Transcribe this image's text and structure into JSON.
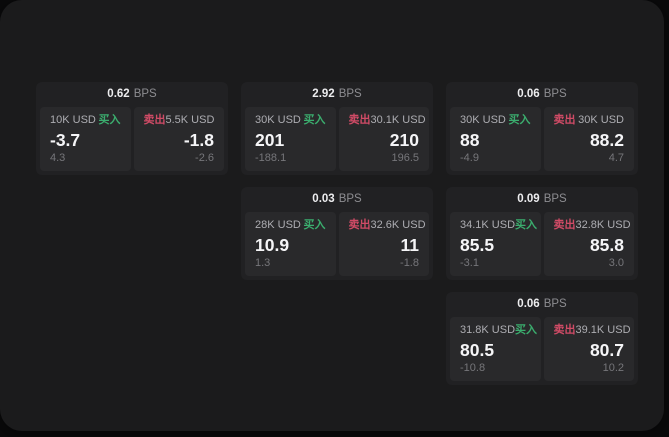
{
  "labels": {
    "bps_suffix": "BPS",
    "buy": "买入",
    "sell": "卖出"
  },
  "colors": {
    "buy_green": "#3bad6e",
    "sell_red": "#d04b66",
    "window_bg": "#1b1b1c",
    "card_bg": "#212123",
    "panel_bg": "#29292b"
  },
  "cards": [
    {
      "bps": "0.62",
      "col": 1,
      "row": 1,
      "buy": {
        "amount": "10K USD",
        "price": "-3.7",
        "delta": "4.3"
      },
      "sell": {
        "amount": "5.5K USD",
        "price": "-1.8",
        "delta": "-2.6"
      }
    },
    {
      "bps": "2.92",
      "col": 2,
      "row": 1,
      "buy": {
        "amount": "30K USD",
        "price": "201",
        "delta": "-188.1"
      },
      "sell": {
        "amount": "30.1K USD",
        "price": "210",
        "delta": "196.5"
      }
    },
    {
      "bps": "0.06",
      "col": 3,
      "row": 1,
      "buy": {
        "amount": "30K USD",
        "price": "88",
        "delta": "-4.9"
      },
      "sell": {
        "amount": "30K USD",
        "price": "88.2",
        "delta": "4.7"
      }
    },
    {
      "bps": "0.03",
      "col": 2,
      "row": 2,
      "buy": {
        "amount": "28K USD",
        "price": "10.9",
        "delta": "1.3"
      },
      "sell": {
        "amount": "32.6K USD",
        "price": "11",
        "delta": "-1.8"
      }
    },
    {
      "bps": "0.09",
      "col": 3,
      "row": 2,
      "buy": {
        "amount": "34.1K USD",
        "price": "85.5",
        "delta": "-3.1"
      },
      "sell": {
        "amount": "32.8K USD",
        "price": "85.8",
        "delta": "3.0"
      }
    },
    {
      "bps": "0.06",
      "col": 3,
      "row": 3,
      "buy": {
        "amount": "31.8K USD",
        "price": "80.5",
        "delta": "-10.8"
      },
      "sell": {
        "amount": "39.1K USD",
        "price": "80.7",
        "delta": "10.2"
      }
    }
  ]
}
